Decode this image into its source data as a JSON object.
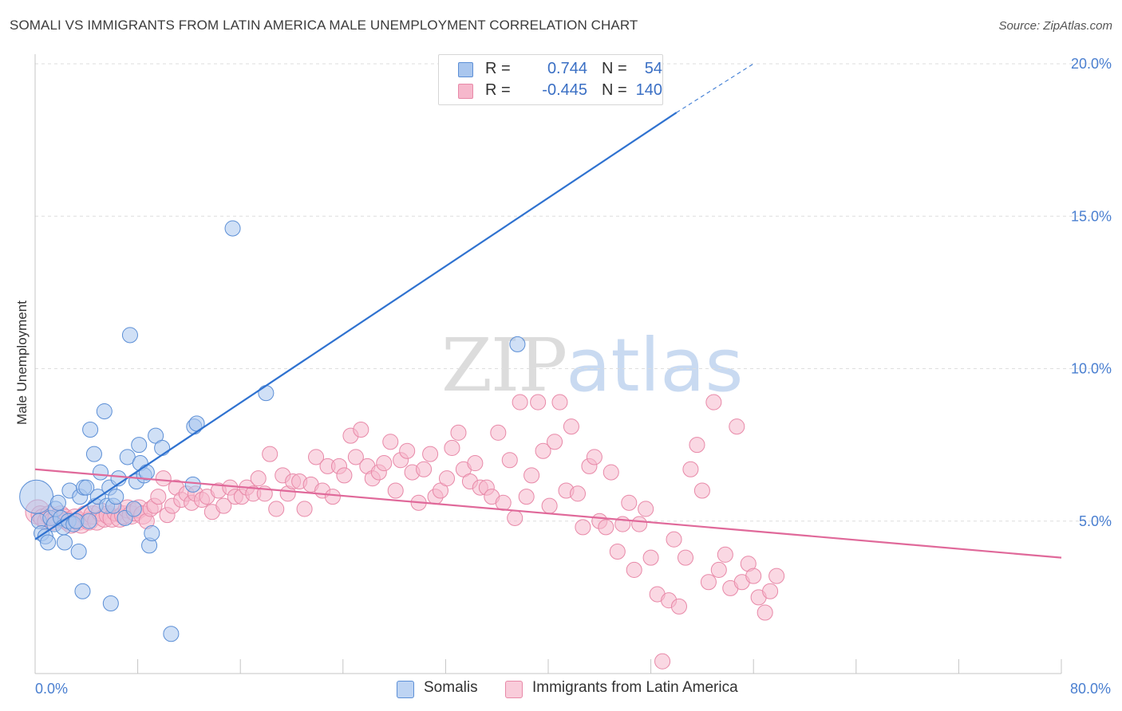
{
  "title": "SOMALI VS IMMIGRANTS FROM LATIN AMERICA MALE UNEMPLOYMENT CORRELATION CHART",
  "source": "Source: ZipAtlas.com",
  "watermark": {
    "part1": "ZIP",
    "part2": "atlas"
  },
  "colors": {
    "somali_fill": "#a9c6ee",
    "somali_stroke": "#5c8fd6",
    "somali_line": "#2f72d0",
    "latin_fill": "#f6b8cc",
    "latin_stroke": "#e889a8",
    "latin_line": "#e0699a",
    "axis_tick": "#4a7fd0",
    "grid": "#dedede"
  },
  "legend": {
    "rows": [
      {
        "r_label": "R =",
        "r_value": "0.744",
        "n_label": "N =",
        "n_value": "54"
      },
      {
        "r_label": "R =",
        "r_value": "-0.445",
        "n_label": "N =",
        "n_value": "140"
      }
    ]
  },
  "bottom_legend": [
    "Somalis",
    "Immigrants from Latin America"
  ],
  "chart_data": {
    "type": "scatter",
    "title": "SOMALI VS IMMIGRANTS FROM LATIN AMERICA MALE UNEMPLOYMENT CORRELATION CHART",
    "xlabel": "",
    "ylabel": "Male Unemployment",
    "xlim": [
      0,
      80
    ],
    "ylim": [
      0,
      20
    ],
    "x_tick_labels": [
      "0.0%",
      "80.0%"
    ],
    "y_ticks": [
      5,
      10,
      15,
      20
    ],
    "y_tick_labels": [
      "5.0%",
      "10.0%",
      "15.0%",
      "20.0%"
    ],
    "grid": true,
    "legend_placement": "top-center",
    "series": [
      {
        "name": "Somalis",
        "r": 0.744,
        "n": 54,
        "trend": {
          "x0": 0,
          "y0": 4.4,
          "x1": 50.0,
          "y1": 18.4,
          "dashed_to_x": 56.0,
          "dashed_to_y": 20.0
        },
        "points": [
          [
            0.1,
            5.8,
            22
          ],
          [
            0.3,
            5.0,
            10
          ],
          [
            0.5,
            4.6,
            10
          ],
          [
            0.8,
            4.5,
            10
          ],
          [
            1.0,
            4.3,
            10
          ],
          [
            1.2,
            5.1,
            10
          ],
          [
            1.5,
            4.9,
            10
          ],
          [
            1.6,
            5.4,
            10
          ],
          [
            1.8,
            5.6,
            10
          ],
          [
            2.0,
            5.1,
            10
          ],
          [
            2.2,
            4.8,
            10
          ],
          [
            2.3,
            4.3,
            10
          ],
          [
            2.6,
            5.0,
            10
          ],
          [
            2.7,
            6.0,
            10
          ],
          [
            3.0,
            4.9,
            10
          ],
          [
            3.2,
            5.0,
            10
          ],
          [
            3.4,
            4.0,
            10
          ],
          [
            3.5,
            5.8,
            10
          ],
          [
            3.7,
            2.7,
            10
          ],
          [
            3.8,
            6.1,
            10
          ],
          [
            4.0,
            6.1,
            10
          ],
          [
            4.2,
            5.0,
            10
          ],
          [
            4.3,
            8.0,
            10
          ],
          [
            4.6,
            7.2,
            10
          ],
          [
            4.7,
            5.5,
            10
          ],
          [
            4.9,
            5.8,
            10
          ],
          [
            5.1,
            6.6,
            10
          ],
          [
            5.4,
            8.6,
            10
          ],
          [
            5.6,
            5.5,
            10
          ],
          [
            5.8,
            6.1,
            10
          ],
          [
            5.9,
            2.3,
            10
          ],
          [
            6.1,
            5.5,
            10
          ],
          [
            6.3,
            5.8,
            10
          ],
          [
            6.5,
            6.4,
            10
          ],
          [
            7.0,
            5.1,
            10
          ],
          [
            7.2,
            7.1,
            10
          ],
          [
            7.4,
            11.1,
            10
          ],
          [
            7.7,
            5.4,
            10
          ],
          [
            7.9,
            6.3,
            10
          ],
          [
            8.1,
            7.5,
            10
          ],
          [
            8.2,
            6.9,
            10
          ],
          [
            8.5,
            6.5,
            10
          ],
          [
            8.7,
            6.6,
            10
          ],
          [
            8.9,
            4.2,
            10
          ],
          [
            9.1,
            4.6,
            10
          ],
          [
            9.4,
            7.8,
            10
          ],
          [
            9.9,
            7.4,
            10
          ],
          [
            10.6,
            1.3,
            10
          ],
          [
            12.3,
            6.2,
            10
          ],
          [
            12.4,
            8.1,
            10
          ],
          [
            12.6,
            8.2,
            10
          ],
          [
            15.4,
            14.6,
            10
          ],
          [
            18.0,
            9.2,
            10
          ],
          [
            37.6,
            10.8,
            10
          ]
        ]
      },
      {
        "name": "Immigrants from Latin America",
        "r": -0.445,
        "n": 140,
        "trend": {
          "x0": 0,
          "y0": 6.7,
          "x1": 80,
          "y1": 3.8
        },
        "points": [
          [
            0.2,
            5.3,
            16
          ],
          [
            0.4,
            5.2,
            12
          ],
          [
            0.6,
            5.1,
            12
          ],
          [
            0.9,
            5.0,
            12
          ],
          [
            1.1,
            5.2,
            12
          ],
          [
            1.4,
            5.0,
            12
          ],
          [
            1.7,
            5.1,
            12
          ],
          [
            2.0,
            5.2,
            12
          ],
          [
            2.3,
            5.1,
            12
          ],
          [
            2.5,
            5.0,
            12
          ],
          [
            2.8,
            4.9,
            12
          ],
          [
            3.1,
            5.1,
            12
          ],
          [
            3.4,
            5.0,
            12
          ],
          [
            3.6,
            4.9,
            12
          ],
          [
            3.9,
            5.2,
            12
          ],
          [
            4.2,
            5.0,
            12
          ],
          [
            4.5,
            5.2,
            12
          ],
          [
            4.8,
            5.0,
            12
          ],
          [
            5.1,
            5.3,
            12
          ],
          [
            5.4,
            5.1,
            12
          ],
          [
            5.7,
            5.2,
            12
          ],
          [
            6.0,
            5.1,
            12
          ],
          [
            6.3,
            5.3,
            12
          ],
          [
            6.6,
            5.1,
            12
          ],
          [
            6.9,
            5.2,
            12
          ],
          [
            7.2,
            5.4,
            12
          ],
          [
            7.5,
            5.2,
            12
          ],
          [
            7.8,
            5.3,
            12
          ],
          [
            8.1,
            5.4,
            12
          ],
          [
            8.4,
            5.2,
            12
          ],
          [
            8.7,
            5.0,
            10
          ],
          [
            9.0,
            5.4,
            10
          ],
          [
            9.3,
            5.5,
            10
          ],
          [
            9.6,
            5.8,
            10
          ],
          [
            10.0,
            6.4,
            10
          ],
          [
            10.3,
            5.2,
            10
          ],
          [
            10.7,
            5.5,
            10
          ],
          [
            11.0,
            6.1,
            10
          ],
          [
            11.4,
            5.7,
            10
          ],
          [
            11.8,
            5.9,
            10
          ],
          [
            12.2,
            5.6,
            10
          ],
          [
            12.5,
            5.9,
            10
          ],
          [
            13.0,
            5.7,
            10
          ],
          [
            13.4,
            5.8,
            10
          ],
          [
            13.8,
            5.3,
            10
          ],
          [
            14.3,
            6.0,
            10
          ],
          [
            14.7,
            5.5,
            10
          ],
          [
            15.2,
            6.1,
            10
          ],
          [
            15.6,
            5.8,
            10
          ],
          [
            16.1,
            5.8,
            10
          ],
          [
            16.5,
            6.1,
            10
          ],
          [
            17.0,
            5.9,
            10
          ],
          [
            17.4,
            6.4,
            10
          ],
          [
            17.9,
            5.9,
            10
          ],
          [
            18.3,
            7.2,
            10
          ],
          [
            18.8,
            5.4,
            10
          ],
          [
            19.3,
            6.5,
            10
          ],
          [
            19.7,
            5.9,
            10
          ],
          [
            20.1,
            6.3,
            10
          ],
          [
            20.6,
            6.3,
            10
          ],
          [
            21.0,
            5.4,
            10
          ],
          [
            21.5,
            6.2,
            10
          ],
          [
            21.9,
            7.1,
            10
          ],
          [
            22.4,
            6.0,
            10
          ],
          [
            22.8,
            6.8,
            10
          ],
          [
            23.2,
            5.8,
            10
          ],
          [
            23.7,
            6.8,
            10
          ],
          [
            24.1,
            6.5,
            10
          ],
          [
            24.6,
            7.8,
            10
          ],
          [
            25.0,
            7.1,
            10
          ],
          [
            25.4,
            8.0,
            10
          ],
          [
            25.9,
            6.8,
            10
          ],
          [
            26.3,
            6.4,
            10
          ],
          [
            26.8,
            6.6,
            10
          ],
          [
            27.2,
            6.9,
            10
          ],
          [
            27.7,
            7.6,
            10
          ],
          [
            28.1,
            6.0,
            10
          ],
          [
            28.5,
            7.0,
            10
          ],
          [
            29.0,
            7.3,
            10
          ],
          [
            29.4,
            6.6,
            10
          ],
          [
            29.9,
            5.6,
            10
          ],
          [
            30.3,
            6.7,
            10
          ],
          [
            30.8,
            7.2,
            10
          ],
          [
            31.2,
            5.8,
            10
          ],
          [
            31.6,
            6.0,
            10
          ],
          [
            32.1,
            6.4,
            10
          ],
          [
            32.5,
            7.4,
            10
          ],
          [
            33.0,
            7.9,
            10
          ],
          [
            33.4,
            6.7,
            10
          ],
          [
            33.9,
            6.3,
            10
          ],
          [
            34.3,
            6.9,
            10
          ],
          [
            34.7,
            6.1,
            10
          ],
          [
            35.2,
            6.1,
            10
          ],
          [
            35.6,
            5.8,
            10
          ],
          [
            36.1,
            7.9,
            10
          ],
          [
            36.5,
            5.6,
            10
          ],
          [
            37.0,
            7.0,
            10
          ],
          [
            37.4,
            5.1,
            10
          ],
          [
            37.8,
            8.9,
            10
          ],
          [
            38.3,
            5.8,
            10
          ],
          [
            38.7,
            6.5,
            10
          ],
          [
            39.2,
            8.9,
            10
          ],
          [
            39.6,
            7.3,
            10
          ],
          [
            40.1,
            5.5,
            10
          ],
          [
            40.5,
            7.6,
            10
          ],
          [
            40.9,
            8.9,
            10
          ],
          [
            41.4,
            6.0,
            10
          ],
          [
            41.8,
            8.1,
            10
          ],
          [
            42.3,
            5.9,
            10
          ],
          [
            42.7,
            4.8,
            10
          ],
          [
            43.2,
            6.8,
            10
          ],
          [
            43.6,
            7.1,
            10
          ],
          [
            44.0,
            5.0,
            10
          ],
          [
            44.5,
            4.8,
            10
          ],
          [
            44.9,
            6.6,
            10
          ],
          [
            45.4,
            4.0,
            10
          ],
          [
            45.8,
            4.9,
            10
          ],
          [
            46.3,
            5.6,
            10
          ],
          [
            46.7,
            3.4,
            10
          ],
          [
            47.1,
            4.9,
            10
          ],
          [
            47.6,
            5.4,
            10
          ],
          [
            48.0,
            3.8,
            10
          ],
          [
            48.5,
            2.6,
            10
          ],
          [
            48.9,
            0.4,
            10
          ],
          [
            49.4,
            2.4,
            10
          ],
          [
            49.8,
            4.4,
            10
          ],
          [
            50.2,
            2.2,
            10
          ],
          [
            50.7,
            3.8,
            10
          ],
          [
            51.1,
            6.7,
            10
          ],
          [
            51.6,
            7.5,
            10
          ],
          [
            52.0,
            6.0,
            10
          ],
          [
            52.5,
            3.0,
            10
          ],
          [
            52.9,
            8.9,
            10
          ],
          [
            53.3,
            3.4,
            10
          ],
          [
            53.8,
            3.9,
            10
          ],
          [
            54.2,
            2.8,
            10
          ],
          [
            54.7,
            8.1,
            10
          ],
          [
            55.1,
            3.0,
            10
          ],
          [
            55.6,
            3.6,
            10
          ],
          [
            56.0,
            3.2,
            10
          ],
          [
            56.4,
            2.5,
            10
          ],
          [
            56.9,
            2.0,
            10
          ],
          [
            57.3,
            2.7,
            10
          ],
          [
            57.8,
            3.2,
            10
          ]
        ]
      }
    ]
  }
}
